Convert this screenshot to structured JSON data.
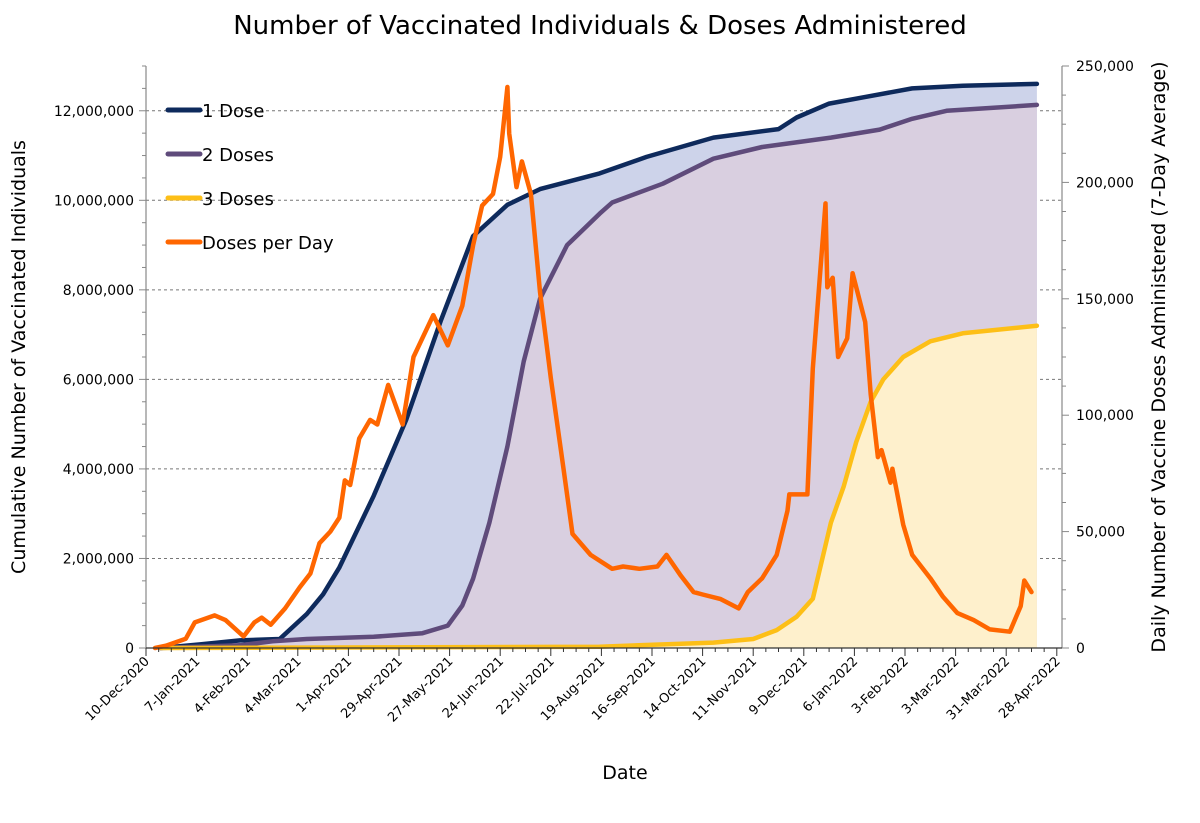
{
  "chart_data": {
    "type": "area+line",
    "title": "Number of Vaccinated Individuals & Doses Administered",
    "xlabel": "Date",
    "ylabel_left": "Cumulative Number of Vaccinated Individuals",
    "ylabel_right": "Daily Number of Vaccine Doses Administered (7-Day Average)",
    "xlim": [
      "2020-12-10",
      "2022-05-01"
    ],
    "ylim_left": [
      0,
      13000000
    ],
    "ylim_right": [
      0,
      250000
    ],
    "grid": "horizontal dashed at left-axis major ticks",
    "legend_position": "top-left",
    "x_tick_labels": [
      "10-Dec-2020",
      "7-Jan-2021",
      "4-Feb-2021",
      "4-Mar-2021",
      "1-Apr-2021",
      "29-Apr-2021",
      "27-May-2021",
      "24-Jun-2021",
      "22-Jul-2021",
      "19-Aug-2021",
      "16-Sep-2021",
      "14-Oct-2021",
      "11-Nov-2021",
      "9-Dec-2021",
      "6-Jan-2022",
      "3-Feb-2022",
      "3-Mar-2022",
      "31-Mar-2022",
      "28-Apr-2022"
    ],
    "y_left_ticks": [
      0,
      2000000,
      4000000,
      6000000,
      8000000,
      10000000,
      12000000
    ],
    "y_left_tick_labels": [
      "0",
      "2,000,000",
      "4,000,000",
      "6,000,000",
      "8,000,000",
      "10,000,000",
      "12,000,000"
    ],
    "y_right_ticks": [
      0,
      50000,
      100000,
      150000,
      200000,
      250000
    ],
    "y_right_tick_labels": [
      "0",
      "50,000",
      "100,000",
      "150,000",
      "200,000",
      "250,000"
    ],
    "series": [
      {
        "name": "1 Dose",
        "axis": "left",
        "color": "#0e2a5c",
        "fill": "#cdd3ea",
        "x": [
          "2020-12-18",
          "2021-01-09",
          "2021-01-31",
          "2021-02-22",
          "2021-03-09",
          "2021-03-18",
          "2021-03-27",
          "2021-04-15",
          "2021-05-03",
          "2021-05-22",
          "2021-06-09",
          "2021-06-28",
          "2021-07-16",
          "2021-08-18",
          "2021-09-13",
          "2021-10-20",
          "2021-11-25",
          "2021-12-05",
          "2021-12-23",
          "2022-01-11",
          "2022-02-07",
          "2022-03-07",
          "2022-04-17"
        ],
        "y": [
          0,
          80000,
          170000,
          200000,
          760000,
          1200000,
          1800000,
          3400000,
          5100000,
          7300000,
          9200000,
          9900000,
          10250000,
          10600000,
          10970000,
          11400000,
          11590000,
          11850000,
          12160000,
          12300000,
          12500000,
          12560000,
          12600000
        ]
      },
      {
        "name": "2 Doses",
        "axis": "left",
        "color": "#5f4b7b",
        "fill": "#d9cfe0",
        "x": [
          "2020-12-18",
          "2021-01-31",
          "2021-02-18",
          "2021-03-09",
          "2021-04-15",
          "2021-05-12",
          "2021-05-26",
          "2021-06-03",
          "2021-06-09",
          "2021-06-18",
          "2021-06-28",
          "2021-07-07",
          "2021-07-16",
          "2021-07-31",
          "2021-08-18",
          "2021-08-25",
          "2021-09-22",
          "2021-10-20",
          "2021-11-16",
          "2021-12-24",
          "2022-01-20",
          "2022-02-07",
          "2022-02-26",
          "2022-04-17"
        ],
        "y": [
          0,
          60000,
          150000,
          200000,
          250000,
          330000,
          500000,
          950000,
          1550000,
          2800000,
          4500000,
          6400000,
          7800000,
          9000000,
          9700000,
          9950000,
          10370000,
          10930000,
          11190000,
          11400000,
          11580000,
          11820000,
          12000000,
          12130000
        ]
      },
      {
        "name": "3 Doses",
        "axis": "left",
        "color": "#fdbf17",
        "fill": "#fef0cc",
        "x": [
          "2020-12-18",
          "2021-08-18",
          "2021-10-20",
          "2021-11-11",
          "2021-11-24",
          "2021-12-05",
          "2021-12-14",
          "2021-12-24",
          "2021-12-31",
          "2022-01-07",
          "2022-01-15",
          "2022-01-22",
          "2022-02-02",
          "2022-02-17",
          "2022-03-07",
          "2022-04-17"
        ],
        "y": [
          0,
          30000,
          120000,
          200000,
          400000,
          700000,
          1100000,
          2800000,
          3600000,
          4600000,
          5500000,
          6000000,
          6500000,
          6850000,
          7030000,
          7200000
        ]
      },
      {
        "name": "Doses per Day",
        "axis": "right",
        "color": "#ff6600",
        "x": [
          "2020-12-15",
          "2020-12-21",
          "2021-01-01",
          "2021-01-06",
          "2021-01-17",
          "2021-01-23",
          "2021-02-02",
          "2021-02-08",
          "2021-02-12",
          "2021-02-17",
          "2021-02-25",
          "2021-03-05",
          "2021-03-11",
          "2021-03-16",
          "2021-03-22",
          "2021-03-27",
          "2021-03-30",
          "2021-04-02",
          "2021-04-07",
          "2021-04-13",
          "2021-04-17",
          "2021-04-23",
          "2021-05-01",
          "2021-05-07",
          "2021-05-18",
          "2021-05-26",
          "2021-06-03",
          "2021-06-09",
          "2021-06-14",
          "2021-06-20",
          "2021-06-24",
          "2021-06-28",
          "2021-06-29",
          "2021-07-03",
          "2021-07-06",
          "2021-07-11",
          "2021-07-16",
          "2021-07-22",
          "2021-07-29",
          "2021-08-03",
          "2021-08-13",
          "2021-08-25",
          "2021-08-31",
          "2021-09-09",
          "2021-09-19",
          "2021-09-24",
          "2021-10-02",
          "2021-10-09",
          "2021-10-14",
          "2021-10-24",
          "2021-11-03",
          "2021-11-08",
          "2021-11-16",
          "2021-11-24",
          "2021-11-30",
          "2021-12-01",
          "2021-12-11",
          "2021-12-14",
          "2021-12-21",
          "2021-12-22",
          "2021-12-25",
          "2021-12-28",
          "2022-01-02",
          "2022-01-05",
          "2022-01-12",
          "2022-01-15",
          "2022-01-19",
          "2022-01-21",
          "2022-01-26",
          "2022-01-27",
          "2022-02-02",
          "2022-02-07",
          "2022-02-17",
          "2022-02-24",
          "2022-03-04",
          "2022-03-13",
          "2022-03-22",
          "2022-04-02",
          "2022-04-08",
          "2022-04-10",
          "2022-04-14"
        ],
        "y": [
          0,
          1000,
          4000,
          11000,
          14000,
          12000,
          5000,
          11000,
          13000,
          10000,
          17000,
          26000,
          32000,
          45000,
          50000,
          56000,
          72000,
          70000,
          90000,
          98000,
          96000,
          113000,
          96000,
          125000,
          143000,
          130000,
          147000,
          173000,
          190000,
          195000,
          211000,
          241000,
          221000,
          198000,
          209000,
          195000,
          153000,
          116000,
          77000,
          49000,
          40000,
          34000,
          35000,
          34000,
          35000,
          40000,
          31000,
          24000,
          23000,
          21000,
          17000,
          24000,
          30000,
          40000,
          59000,
          66000,
          66000,
          120000,
          191000,
          155000,
          159000,
          125000,
          133000,
          161000,
          140000,
          109000,
          82000,
          85000,
          71000,
          77000,
          53000,
          40000,
          30000,
          22000,
          15000,
          12000,
          8000,
          7000,
          18000,
          29000,
          24000
        ]
      }
    ]
  }
}
